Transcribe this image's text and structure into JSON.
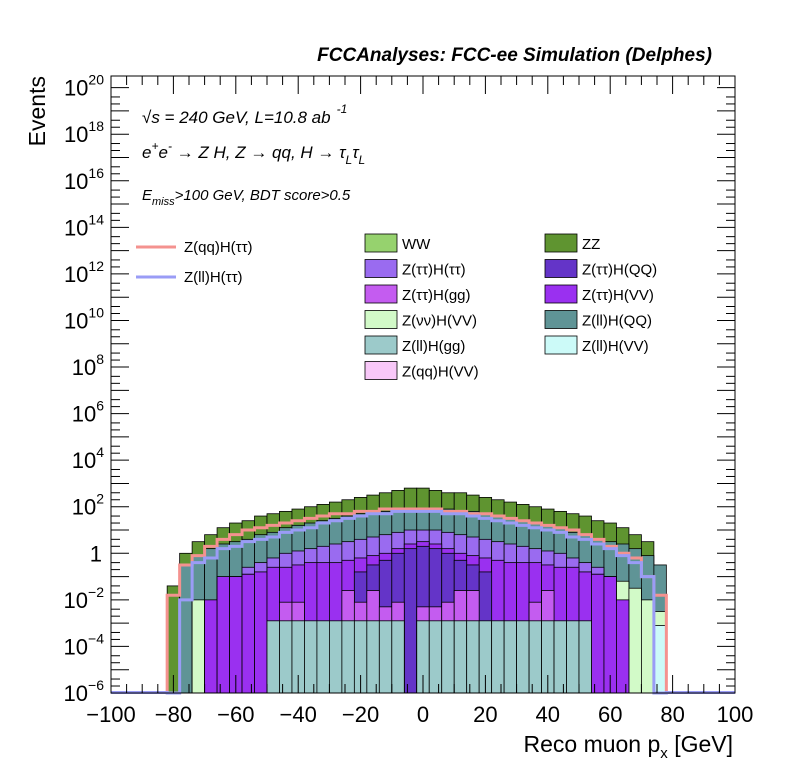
{
  "chart_data": {
    "type": "bar",
    "title": "FCCAnalyses: FCC-ee Simulation (Delphes)",
    "ylabel": "Events",
    "xlabel_main": "Reco muon p",
    "xlabel_sub": "x",
    "xlabel_unit": "[GeV]",
    "xlim": [
      -100,
      100
    ],
    "ylim_log10": [
      -6,
      20.5
    ],
    "yscale": "log",
    "x_ticks": [
      -100,
      -80,
      -60,
      -40,
      -20,
      0,
      20,
      40,
      60,
      80,
      100
    ],
    "y_tick_labels": [
      {
        "exp": -6,
        "base": "10",
        "sup": "−6"
      },
      {
        "exp": -4,
        "base": "10",
        "sup": "−4"
      },
      {
        "exp": -2,
        "base": "10",
        "sup": "−2"
      },
      {
        "exp": 0,
        "base": "1",
        "sup": ""
      },
      {
        "exp": 2,
        "base": "10",
        "sup": "2"
      },
      {
        "exp": 4,
        "base": "10",
        "sup": "4"
      },
      {
        "exp": 6,
        "base": "10",
        "sup": "6"
      },
      {
        "exp": 8,
        "base": "10",
        "sup": "8"
      },
      {
        "exp": 10,
        "base": "10",
        "sup": "10"
      },
      {
        "exp": 12,
        "base": "10",
        "sup": "12"
      },
      {
        "exp": 14,
        "base": "10",
        "sup": "14"
      },
      {
        "exp": 16,
        "base": "10",
        "sup": "16"
      },
      {
        "exp": 18,
        "base": "10",
        "sup": "18"
      },
      {
        "exp": 20,
        "base": "10",
        "sup": "20"
      }
    ],
    "annotations": {
      "energy": "√s = 240 GeV, L=10.8 ab",
      "energy_sup": "-1",
      "process": "e⁺e⁻ → Z H, Z → qq, H → τ_L τ_L",
      "process_main": "e",
      "selection": "E",
      "selection_sub": "miss",
      "selection_rest": ">100 GeV, BDT score>0.5"
    },
    "legend_lines": [
      {
        "name": "Z(qq)H(ττ)",
        "color": "#f4928f"
      },
      {
        "name": "Z(ll)H(ττ)",
        "color": "#9a9cf6"
      }
    ],
    "legend_fills": [
      {
        "name": "WW",
        "color": "#96d26e"
      },
      {
        "name": "ZZ",
        "color": "#5f9430"
      },
      {
        "name": "Z(ττ)H(ττ)",
        "color": "#9a6bf0"
      },
      {
        "name": "Z(ττ)H(QQ)",
        "color": "#6434c8"
      },
      {
        "name": "Z(ττ)H(gg)",
        "color": "#c45cf0"
      },
      {
        "name": "Z(ττ)H(VV)",
        "color": "#9a30f0"
      },
      {
        "name": "Z(νν)H(VV)",
        "color": "#d2fac8"
      },
      {
        "name": "Z(ll)H(QQ)",
        "color": "#5f9496"
      },
      {
        "name": "Z(ll)H(gg)",
        "color": "#9ccaca"
      },
      {
        "name": "Z(ll)H(VV)",
        "color": "#ccfaf8"
      },
      {
        "name": "Z(qq)H(VV)",
        "color": "#f8c8f8"
      }
    ],
    "bin_edges": [
      -82,
      -78,
      -74,
      -70,
      -66,
      -62,
      -58,
      -54,
      -50,
      -46,
      -42,
      -38,
      -34,
      -30,
      -26,
      -22,
      -18,
      -14,
      -10,
      -6,
      -2,
      2,
      6,
      10,
      14,
      18,
      22,
      26,
      30,
      34,
      38,
      42,
      46,
      50,
      54,
      58,
      62,
      66,
      70,
      74,
      78
    ],
    "stack_log10": {
      "ZlHVV": [
        -6,
        -6,
        -6,
        -6,
        -6,
        -6,
        -6,
        -6,
        -6,
        -6,
        -6,
        -6,
        -6,
        -6,
        -6,
        -6,
        -6,
        -6,
        -6,
        -6,
        -6,
        -6,
        -6,
        -6,
        -6,
        -6,
        -6,
        -6,
        -6,
        -6,
        -6,
        -6,
        -6,
        -6,
        -6,
        -6,
        -6,
        -6,
        -6,
        -3.1
      ],
      "ZlHgg": [
        -6,
        -6,
        -6,
        -6,
        -6,
        -6,
        -6,
        -6,
        -2.9,
        -2.9,
        -2.9,
        -2.9,
        -2.9,
        -2.9,
        -2.9,
        -2.9,
        -2.9,
        -2.9,
        -2.9,
        -6,
        -2.9,
        -2.9,
        -2.9,
        -2.9,
        -2.9,
        -2.9,
        -2.9,
        -2.9,
        -2.9,
        -2.9,
        -2.9,
        -2.9,
        -2.9,
        -2.9,
        -6,
        -6,
        -6,
        -6,
        -6,
        -6
      ],
      "ZvvHVV": [
        -6,
        -6,
        -2.0,
        -2.0,
        -1.2,
        -1.0,
        -0.9,
        -0.8,
        -0.7,
        -0.7,
        -0.6,
        -0.6,
        -0.6,
        -0.6,
        -0.6,
        -0.6,
        -0.6,
        -0.6,
        -0.6,
        -0.6,
        -0.6,
        -0.6,
        -0.6,
        -0.6,
        -0.6,
        -0.6,
        -0.6,
        -0.6,
        -0.6,
        -0.6,
        -0.6,
        -0.7,
        -0.7,
        -0.8,
        -0.9,
        -1.0,
        -1.2,
        -1.5,
        -2.0,
        -2.5
      ],
      "ZttHgg": [
        -6,
        -6,
        -6,
        -6,
        -6,
        -6,
        -6,
        -6,
        -6,
        -2.1,
        -2.1,
        -6,
        -6,
        -6,
        -1.6,
        -2.1,
        -1.6,
        -2.3,
        -2.1,
        -6,
        -2.3,
        -2.3,
        -2.1,
        -1.6,
        -1.6,
        -6,
        -6,
        -6,
        -6,
        -2.1,
        -1.6,
        -6,
        -6,
        -6,
        -6,
        -6,
        -6,
        -6,
        -6,
        -6
      ],
      "ZttHVV": [
        -6,
        -6,
        -6,
        -2.0,
        -1.0,
        -1.0,
        -0.9,
        -0.8,
        -0.6,
        -0.6,
        -0.5,
        -0.4,
        -0.4,
        -0.4,
        -0.3,
        -0.2,
        -0.1,
        0.0,
        0.2,
        0.4,
        0.5,
        0.4,
        0.2,
        0.0,
        -0.1,
        -0.2,
        -0.3,
        -0.4,
        -0.4,
        -0.4,
        -0.5,
        -0.6,
        -0.6,
        -0.8,
        -0.9,
        -1.0,
        -2.0,
        -6,
        -6,
        -6
      ],
      "ZttHQQ": [
        -6,
        -6,
        -6,
        -6,
        -6,
        -6,
        -6,
        -6,
        -6,
        -6,
        -6,
        -6,
        -6,
        -6,
        -6,
        -0.8,
        -0.5,
        -0.3,
        0.0,
        0.2,
        0.3,
        0.2,
        0.0,
        -0.3,
        -0.5,
        -0.8,
        -6,
        -6,
        -6,
        -6,
        -6,
        -6,
        -6,
        -6,
        -6,
        -6,
        -6,
        -6,
        -6,
        -6
      ],
      "ZttHtt": [
        -6,
        -6,
        -6,
        -6,
        -6,
        -6,
        -0.6,
        -0.4,
        -0.2,
        0.0,
        0.1,
        0.2,
        0.3,
        0.4,
        0.5,
        0.6,
        0.7,
        0.8,
        0.9,
        1.0,
        1.0,
        1.0,
        0.9,
        0.8,
        0.7,
        0.6,
        0.5,
        0.4,
        0.3,
        0.2,
        0.1,
        0.0,
        -0.2,
        -0.4,
        -0.6,
        -6,
        -6,
        -6,
        -6,
        -6
      ],
      "ZllHQQ": [
        -6,
        -0.5,
        -0.1,
        0.2,
        0.4,
        0.5,
        0.6,
        0.8,
        0.9,
        1.1,
        1.2,
        1.3,
        1.4,
        1.5,
        1.6,
        1.7,
        1.8,
        1.8,
        1.9,
        1.9,
        1.9,
        1.9,
        1.9,
        1.8,
        1.8,
        1.7,
        1.6,
        1.5,
        1.4,
        1.3,
        1.2,
        1.1,
        0.9,
        0.8,
        0.6,
        0.5,
        0.4,
        0.2,
        -0.1,
        -0.5
      ],
      "ZZ": [
        -1.4,
        0.0,
        0.5,
        0.8,
        1.1,
        1.3,
        1.4,
        1.6,
        1.7,
        1.8,
        1.9,
        2.0,
        2.1,
        2.2,
        2.3,
        2.4,
        2.5,
        2.6,
        2.7,
        2.8,
        2.8,
        2.7,
        2.6,
        2.6,
        2.5,
        2.4,
        2.3,
        2.2,
        2.1,
        2.0,
        1.9,
        1.8,
        1.7,
        1.6,
        1.4,
        1.3,
        1.1,
        0.8,
        0.5,
        -6
      ]
    },
    "line_series_log10": {
      "ZqqHtt": [
        -1.8,
        -0.5,
        -0.1,
        0.3,
        0.6,
        0.8,
        1.0,
        1.1,
        1.2,
        1.3,
        1.4,
        1.5,
        1.6,
        1.7,
        1.7,
        1.8,
        1.8,
        1.9,
        1.9,
        1.9,
        1.9,
        1.9,
        1.8,
        1.8,
        1.7,
        1.7,
        1.6,
        1.5,
        1.4,
        1.3,
        1.2,
        1.1,
        1.0,
        0.8,
        0.6,
        0.3,
        0.0,
        -0.2,
        -1.0,
        -1.8
      ],
      "ZllHtt": [
        -6,
        -2.0,
        -0.4,
        -0.2,
        0.2,
        0.3,
        0.5,
        0.6,
        0.7,
        0.9,
        1.0,
        1.1,
        1.3,
        1.4,
        1.5,
        1.6,
        1.7,
        1.7,
        1.8,
        1.8,
        1.8,
        1.8,
        1.7,
        1.7,
        1.6,
        1.5,
        1.4,
        1.3,
        1.2,
        1.1,
        1.0,
        0.9,
        0.7,
        0.6,
        0.4,
        0.2,
        -0.1,
        -0.4,
        -1.0,
        -6
      ]
    }
  }
}
